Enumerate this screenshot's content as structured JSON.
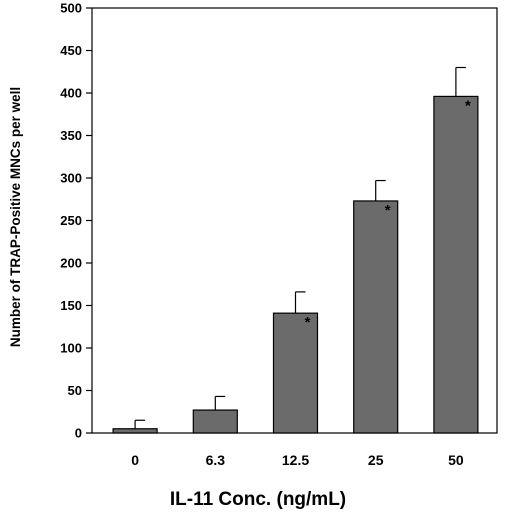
{
  "chart_data": {
    "type": "bar",
    "categories": [
      "0",
      "6.3",
      "12.5",
      "25",
      "50"
    ],
    "values": [
      5,
      27,
      141,
      273,
      396
    ],
    "errors": [
      10,
      16,
      25,
      24,
      34
    ],
    "significance": [
      "",
      "",
      "*",
      "*",
      "*"
    ],
    "xlabel": "IL-11 Conc. (ng/mL)",
    "ylabel": "Number of TRAP-Positive MNCs per well",
    "ylim": [
      0,
      500
    ],
    "yticks": [
      0,
      50,
      100,
      150,
      200,
      250,
      300,
      350,
      400,
      450,
      500
    ],
    "bar_color": "#6b6b6b",
    "grid": false
  }
}
